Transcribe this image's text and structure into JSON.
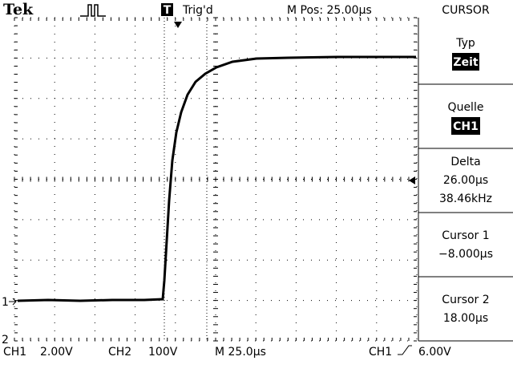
{
  "header": {
    "brand": "Tek",
    "trigger_badge": "T",
    "trigger_state": "Trig'd",
    "position": "M Pos: 25.00µs",
    "menu_title": "CURSOR"
  },
  "menu": [
    {
      "label": "Typ",
      "value": "Zeit"
    },
    {
      "label": "Quelle",
      "value": "CH1"
    },
    {
      "label": "Delta",
      "lines": [
        "26.00µs",
        "38.46kHz"
      ]
    },
    {
      "label": "Cursor 1",
      "value": "−8.000µs"
    },
    {
      "label": "Cursor 2",
      "value": "18.00µs"
    }
  ],
  "markers": {
    "ch1": "1",
    "ch2": "2"
  },
  "footer": {
    "ch1": "CH1",
    "ch1_scale": "2.00V",
    "ch2": "CH2",
    "ch2_scale": "100V",
    "timebase": "M 25.0µs",
    "trigger_source": "CH1",
    "trigger_level": "6.00V"
  }
}
